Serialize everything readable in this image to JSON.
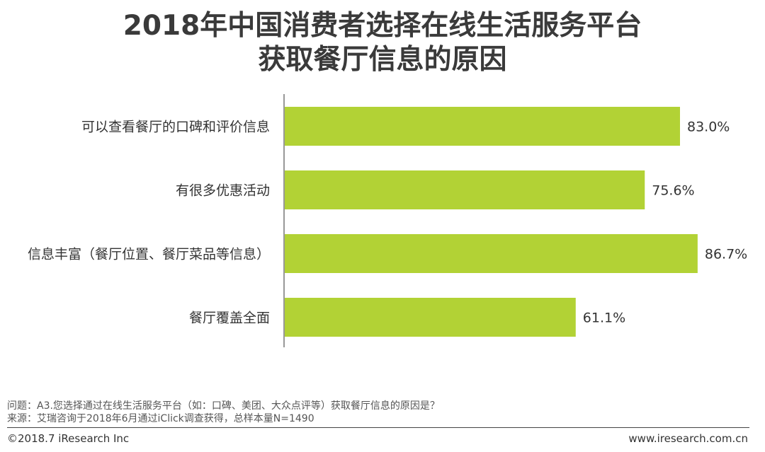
{
  "chart_data": {
    "type": "bar",
    "orientation": "horizontal",
    "title": "2018年中国消费者选择在线生活服务平台",
    "subtitle": "获取餐厅信息的原因",
    "categories": [
      "可以查看餐厅的口碑和评价信息",
      "有很多优惠活动",
      "信息丰富（餐厅位置、餐厅菜品等信息）",
      "餐厅覆盖全面"
    ],
    "values": [
      83.0,
      75.6,
      86.7,
      61.1
    ],
    "value_labels": [
      "83.0%",
      "75.6%",
      "86.7%",
      "61.1%"
    ],
    "xlabel": "",
    "ylabel": "",
    "xlim": [
      0,
      100
    ],
    "grid": false,
    "legend": "none",
    "bar_color": "#b2d235"
  },
  "footnotes": {
    "question": "问题：A3.您选择通过在线生活服务平台（如：口碑、美团、大众点评等）获取餐厅信息的原因是？",
    "source": "来源：艾瑞咨询于2018年6月通过iClick调查获得，总样本量N=1490"
  },
  "footer": {
    "copyright": "©2018.7 iResearch Inc",
    "website": "www.iresearch.com.cn"
  }
}
